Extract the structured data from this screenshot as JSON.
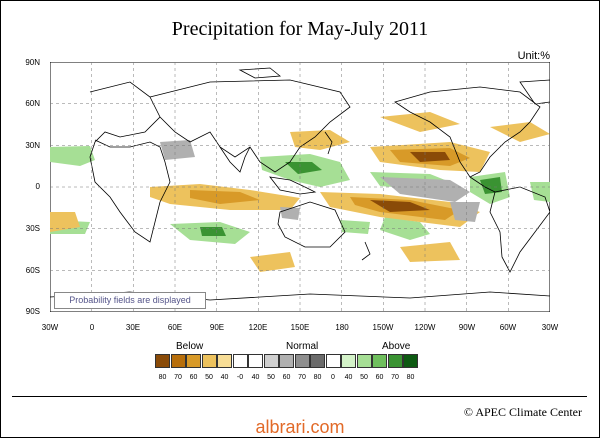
{
  "title": "Precipitation for May-July 2011",
  "unit": "Unit:%",
  "lat_labels": [
    "90N",
    "60N",
    "30N",
    "0",
    "30S",
    "60S",
    "90S"
  ],
  "lon_labels": [
    "30W",
    "0",
    "30E",
    "60E",
    "90E",
    "120E",
    "150E",
    "180",
    "150W",
    "120W",
    "90W",
    "60W",
    "30W"
  ],
  "note": "Probability fields are displayed",
  "legend": {
    "below": "Below",
    "normal": "Normal",
    "above": "Above",
    "ticks": [
      "80",
      "70",
      "60",
      "50",
      "40",
      "-0",
      "40",
      "50",
      "60",
      "70",
      "80",
      "0",
      "40",
      "50",
      "60",
      "70",
      "80"
    ],
    "colors": [
      "#8a4b08",
      "#b76e0a",
      "#d89a28",
      "#edc25d",
      "#f7dd96",
      "#ffffff",
      "#ffffff",
      "#d0d0d0",
      "#b0b0b0",
      "#8e8e8e",
      "#6b6b6b",
      "#ffffff",
      "#d4f3c9",
      "#a6df95",
      "#6fbf5d",
      "#3a9332",
      "#0d5a12"
    ]
  },
  "credit": "© APEC Climate Center",
  "watermark": "albrari.com",
  "colors": {
    "below": "#d89a28",
    "normal": "#b0b0b0",
    "above": "#6fbf5d"
  }
}
